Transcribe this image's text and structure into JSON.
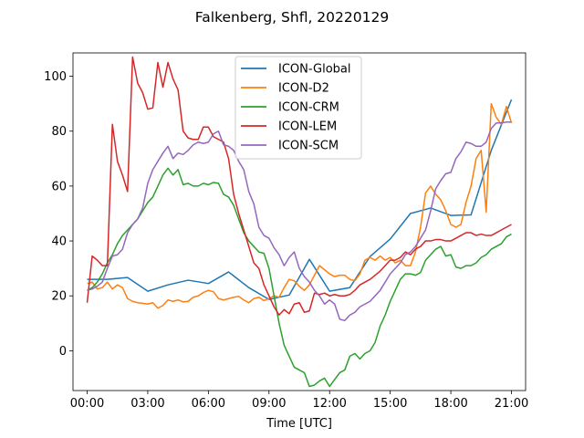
{
  "chart_data": {
    "type": "line",
    "title": "Falkenberg, Shfl, 20220129",
    "xlabel": "Time [UTC]",
    "ylabel": "",
    "xlim": [
      -0.7,
      21.7
    ],
    "ylim": [
      -14.5,
      108.5
    ],
    "x_ticks": [
      {
        "value": 0,
        "label": "00:00"
      },
      {
        "value": 3,
        "label": "03:00"
      },
      {
        "value": 6,
        "label": "06:00"
      },
      {
        "value": 9,
        "label": "09:00"
      },
      {
        "value": 12,
        "label": "12:00"
      },
      {
        "value": 15,
        "label": "15:00"
      },
      {
        "value": 18,
        "label": "18:00"
      },
      {
        "value": 21,
        "label": "21:00"
      }
    ],
    "y_ticks": [
      {
        "value": 0,
        "label": "0"
      },
      {
        "value": 20,
        "label": "20"
      },
      {
        "value": 40,
        "label": "40"
      },
      {
        "value": 60,
        "label": "60"
      },
      {
        "value": 80,
        "label": "80"
      },
      {
        "value": 100,
        "label": "100"
      }
    ],
    "legend_position": "top-center",
    "grid": false,
    "series": [
      {
        "name": "ICON-Global",
        "color": "#1f77b4",
        "x": [
          0,
          1,
          2,
          3,
          4,
          5,
          6,
          7,
          8,
          9,
          10,
          11,
          12,
          13,
          14,
          15,
          16,
          17,
          18,
          19,
          20,
          21
        ],
        "y": [
          26,
          26,
          26.7,
          21.7,
          24,
          25.7,
          24.5,
          28.7,
          23,
          18.7,
          20.3,
          33.3,
          21.7,
          23,
          34.3,
          40.7,
          50,
          52,
          49.3,
          49.5,
          73,
          91.5
        ]
      },
      {
        "name": "ICON-D2",
        "color": "#ff7f0e",
        "x": [
          0,
          0.25,
          0.5,
          0.75,
          1,
          1.25,
          1.5,
          1.75,
          2,
          2.25,
          2.5,
          2.75,
          3,
          3.25,
          3.5,
          3.75,
          4,
          4.25,
          4.5,
          4.75,
          5,
          5.25,
          5.5,
          5.75,
          6,
          6.25,
          6.5,
          6.75,
          7,
          7.25,
          7.5,
          7.75,
          8,
          8.25,
          8.5,
          8.75,
          9,
          9.25,
          9.5,
          9.75,
          10,
          10.25,
          10.5,
          10.75,
          11,
          11.25,
          11.5,
          11.75,
          12,
          12.25,
          12.5,
          12.75,
          13,
          13.25,
          13.5,
          13.75,
          14,
          14.25,
          14.5,
          14.75,
          15,
          15.25,
          15.5,
          15.75,
          16,
          16.25,
          16.5,
          16.75,
          17,
          17.25,
          17.5,
          17.75,
          18,
          18.25,
          18.5,
          18.75,
          19,
          19.25,
          19.5,
          19.75,
          20,
          20.25,
          20.5,
          20.75,
          21
        ],
        "y": [
          24.5,
          25,
          22.5,
          23,
          25,
          22.5,
          24,
          23,
          19,
          18,
          17.5,
          17.3,
          17,
          17.5,
          15.5,
          16.5,
          18.5,
          18,
          18.5,
          17.8,
          18,
          19.5,
          20,
          21.2,
          22,
          21.5,
          19,
          18.5,
          19,
          19.5,
          19.8,
          18.5,
          17.5,
          19,
          19.5,
          18.3,
          19,
          20,
          19.5,
          23,
          26,
          25.5,
          23.5,
          22,
          24,
          27.5,
          31,
          29.5,
          28,
          27,
          27.5,
          27.5,
          26,
          25.5,
          28,
          33,
          34,
          33,
          34.5,
          33,
          34,
          32,
          33,
          31,
          31,
          36,
          45,
          57.5,
          60,
          57,
          55,
          51,
          46,
          45,
          46,
          54,
          60,
          70,
          73,
          50.5,
          90,
          85,
          82.5,
          89,
          83
        ]
      },
      {
        "name": "ICON-CRM",
        "color": "#2ca02c",
        "x": [
          0,
          0.25,
          0.5,
          0.75,
          1,
          1.25,
          1.5,
          1.75,
          2,
          2.25,
          2.5,
          2.75,
          3,
          3.25,
          3.5,
          3.75,
          4,
          4.25,
          4.5,
          4.75,
          5,
          5.25,
          5.5,
          5.75,
          6,
          6.25,
          6.5,
          6.75,
          7,
          7.25,
          7.5,
          7.75,
          8,
          8.25,
          8.5,
          8.75,
          9,
          9.25,
          9.5,
          9.75,
          10,
          10.25,
          10.5,
          10.75,
          11,
          11.25,
          11.5,
          11.75,
          12,
          12.25,
          12.5,
          12.75,
          13,
          13.25,
          13.5,
          13.75,
          14,
          14.25,
          14.5,
          14.75,
          15,
          15.25,
          15.5,
          15.75,
          16,
          16.25,
          16.5,
          16.75,
          17,
          17.25,
          17.5,
          17.75,
          18,
          18.25,
          18.5,
          18.75,
          19,
          19.25,
          19.5,
          19.75,
          20,
          20.25,
          20.5,
          20.75,
          21
        ],
        "y": [
          22,
          23,
          25,
          28,
          32,
          35,
          39,
          42,
          44,
          46,
          48,
          51,
          54,
          56,
          60,
          64,
          66.5,
          64,
          66,
          60.5,
          61,
          60,
          60,
          61,
          60.5,
          61.3,
          61,
          57,
          56,
          53,
          48,
          43,
          40,
          38,
          36,
          35.5,
          30,
          20,
          10,
          2,
          -2,
          -6,
          -7,
          -8,
          -13,
          -12.5,
          -11,
          -10,
          -13,
          -10.5,
          -8,
          -7,
          -2,
          -1,
          -3,
          -1,
          0,
          3,
          9,
          13,
          18,
          22,
          26,
          28,
          28,
          27.5,
          28.5,
          33,
          35,
          37,
          38,
          34.5,
          35,
          30.5,
          30,
          31,
          31,
          32,
          34,
          35,
          37,
          38,
          39,
          41.5,
          42.5
        ]
      },
      {
        "name": "ICON-LEM",
        "color": "#d62728",
        "x": [
          0,
          0.25,
          0.5,
          0.75,
          1,
          1.25,
          1.5,
          1.75,
          2,
          2.25,
          2.5,
          2.75,
          3,
          3.25,
          3.5,
          3.75,
          4,
          4.25,
          4.5,
          4.75,
          5,
          5.25,
          5.5,
          5.75,
          6,
          6.25,
          6.5,
          6.75,
          7,
          7.25,
          7.5,
          7.75,
          8,
          8.25,
          8.5,
          8.75,
          9,
          9.25,
          9.5,
          9.75,
          10,
          10.25,
          10.5,
          10.75,
          11,
          11.25,
          11.5,
          11.75,
          12,
          12.25,
          12.5,
          12.75,
          13,
          13.25,
          13.5,
          13.75,
          14,
          14.25,
          14.5,
          14.75,
          15,
          15.25,
          15.5,
          15.75,
          16,
          16.25,
          16.5,
          16.75,
          17,
          17.25,
          17.5,
          17.75,
          18,
          18.25,
          18.5,
          18.75,
          19,
          19.25,
          19.5,
          19.75,
          20,
          20.25,
          20.5,
          20.75,
          21
        ],
        "y": [
          17.5,
          34.5,
          33,
          31,
          31,
          82.5,
          69,
          64,
          58,
          107,
          97.5,
          94,
          88,
          88.5,
          105,
          96,
          105,
          99,
          95,
          80,
          77.5,
          77,
          77,
          81.5,
          81.5,
          78,
          77,
          76,
          70,
          57,
          50,
          44,
          38,
          32,
          30,
          24,
          20,
          16,
          13,
          15,
          13.5,
          17,
          17.5,
          14,
          14.5,
          21,
          20.5,
          21,
          20,
          20.5,
          20,
          20,
          20.5,
          22,
          24,
          25,
          26,
          27.5,
          29,
          31,
          33,
          33,
          34,
          36,
          35,
          37,
          38,
          40,
          40,
          40.5,
          40.5,
          40,
          40,
          41,
          42,
          43,
          43,
          42,
          42.5,
          42,
          42,
          43,
          44,
          45,
          46
        ]
      },
      {
        "name": "ICON-SCM",
        "color": "#9467bd",
        "x": [
          0,
          0.25,
          0.5,
          0.75,
          1,
          1.25,
          1.5,
          1.75,
          2,
          2.25,
          2.5,
          2.75,
          3,
          3.25,
          3.5,
          3.75,
          4,
          4.25,
          4.5,
          4.75,
          5,
          5.25,
          5.5,
          5.75,
          6,
          6.25,
          6.5,
          6.75,
          7,
          7.25,
          7.5,
          7.75,
          8,
          8.25,
          8.5,
          8.75,
          9,
          9.25,
          9.5,
          9.75,
          10,
          10.25,
          10.5,
          10.75,
          11,
          11.25,
          11.5,
          11.75,
          12,
          12.25,
          12.5,
          12.75,
          13,
          13.25,
          13.5,
          13.75,
          14,
          14.25,
          14.5,
          14.75,
          15,
          15.25,
          15.5,
          15.75,
          16,
          16.25,
          16.5,
          16.75,
          17,
          17.25,
          17.5,
          17.75,
          18,
          18.25,
          18.5,
          18.75,
          19,
          19.25,
          19.5,
          19.75,
          20,
          20.25,
          20.5,
          20.75,
          21
        ],
        "y": [
          22,
          22.5,
          23.5,
          25,
          30,
          34.5,
          35,
          37,
          43,
          46,
          48,
          52,
          61,
          66,
          69,
          72,
          74.5,
          70,
          72,
          71.5,
          73,
          75,
          76,
          75.5,
          76,
          79,
          80,
          75,
          74.5,
          73,
          69,
          66,
          58,
          53.5,
          45,
          42,
          41,
          37.5,
          35,
          31,
          34,
          36,
          30,
          27,
          25,
          22,
          20,
          17,
          18.5,
          17,
          11.5,
          11,
          13,
          14,
          16,
          17,
          18,
          20,
          22,
          25,
          28,
          30,
          32,
          35,
          36,
          38,
          41,
          44,
          51,
          59,
          62,
          64.5,
          65,
          70,
          72.5,
          76,
          75.5,
          74.5,
          74.5,
          76,
          81,
          83,
          83,
          83.3,
          83.3
        ]
      }
    ]
  }
}
